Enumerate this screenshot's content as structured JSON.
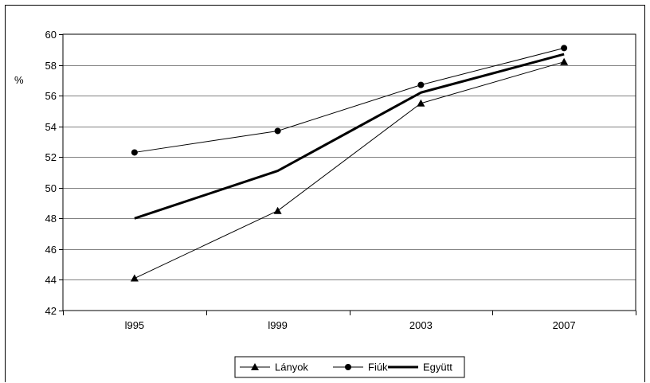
{
  "chart_data": {
    "type": "line",
    "title": "",
    "xlabel": "",
    "ylabel": "%",
    "categories": [
      "l995",
      "l999",
      "2003",
      "2007"
    ],
    "ylim": [
      42,
      60
    ],
    "yticks": [
      42,
      44,
      46,
      48,
      50,
      52,
      54,
      56,
      58,
      60
    ],
    "grid": true,
    "legend_position": "bottom",
    "series": [
      {
        "name": "Lányok",
        "values": [
          44.1,
          48.5,
          55.5,
          58.2
        ],
        "marker": "triangle",
        "stroke_color": "#000000"
      },
      {
        "name": "Fiúk",
        "values": [
          52.3,
          53.7,
          56.7,
          59.1
        ],
        "marker": "circle",
        "stroke_color": "#000000"
      },
      {
        "name": "Együtt",
        "values": [
          48.0,
          51.1,
          56.2,
          58.7
        ],
        "marker": "none",
        "stroke_color": "#000000"
      }
    ]
  }
}
